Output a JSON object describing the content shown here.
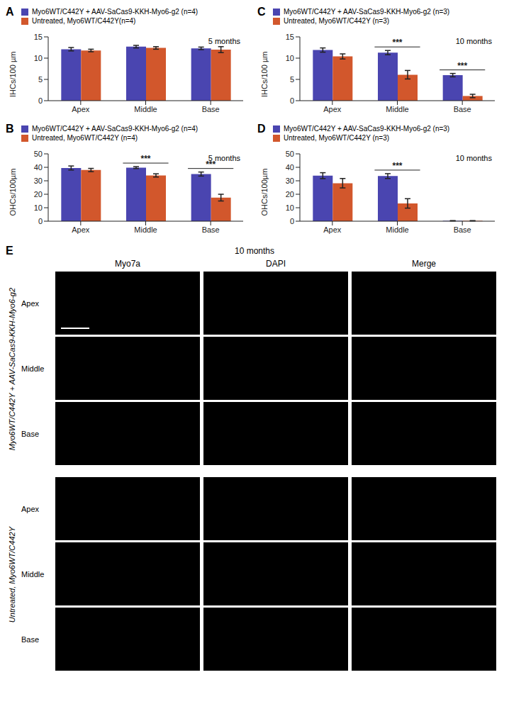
{
  "chart_data": [
    {
      "panel": "A",
      "type": "bar",
      "annotation": "5 months",
      "ylabel": "IHCs/100 µm",
      "categories": [
        "Apex",
        "Middle",
        "Base"
      ],
      "series": [
        {
          "name": "Myo6WT/C442Y + AAV-SaCas9-KKH-Myo6-g2 (n=4)",
          "color": "#4a45b0",
          "values": [
            12.1,
            12.7,
            12.3
          ],
          "errors": [
            0.4,
            0.3,
            0.3
          ]
        },
        {
          "name": "Untreated, Myo6WT/C442Y(n=4)",
          "color": "#d2572c",
          "values": [
            11.8,
            12.4,
            12.0
          ],
          "errors": [
            0.3,
            0.3,
            0.7
          ]
        }
      ],
      "ylim": [
        0,
        15
      ],
      "yticks": [
        0,
        5,
        10,
        15
      ],
      "significance": []
    },
    {
      "panel": "B",
      "type": "bar",
      "annotation": "5 months",
      "ylabel": "OHCs/100µm",
      "categories": [
        "Apex",
        "Middle",
        "Base"
      ],
      "series": [
        {
          "name": "Myo6WT/C442Y + AAV-SaCas9-KKH-Myo6-g2 (n=4)",
          "color": "#4a45b0",
          "values": [
            39.5,
            39.8,
            35.0
          ],
          "errors": [
            1.5,
            0.7,
            1.5
          ]
        },
        {
          "name": "Untreated, Myo6WT/C442Y (n=4)",
          "color": "#d2572c",
          "values": [
            38.0,
            34.0,
            17.5
          ],
          "errors": [
            1.2,
            1.2,
            2.5
          ]
        }
      ],
      "ylim": [
        0,
        50
      ],
      "yticks": [
        0,
        10,
        20,
        30,
        40,
        50
      ],
      "significance": [
        {
          "category": "Middle",
          "label": "***"
        },
        {
          "category": "Base",
          "label": "***"
        }
      ]
    },
    {
      "panel": "C",
      "type": "bar",
      "annotation": "10 months",
      "ylabel": "IHCs/100 µm",
      "categories": [
        "Apex",
        "Middle",
        "Base"
      ],
      "series": [
        {
          "name": "Myo6WT/C442Y + AAV-SaCas9-KKH-Myo6-g2 (n=3)",
          "color": "#4a45b0",
          "values": [
            11.9,
            11.3,
            6.0
          ],
          "errors": [
            0.5,
            0.5,
            0.4
          ]
        },
        {
          "name": "Untreated, Myo6WT/C442Y (n=3)",
          "color": "#d2572c",
          "values": [
            10.4,
            6.1,
            1.1
          ],
          "errors": [
            0.6,
            1.0,
            0.4
          ]
        }
      ],
      "ylim": [
        0,
        15
      ],
      "yticks": [
        0,
        5,
        10,
        15
      ],
      "significance": [
        {
          "category": "Middle",
          "label": "***"
        },
        {
          "category": "Base",
          "label": "***"
        }
      ]
    },
    {
      "panel": "D",
      "type": "bar",
      "annotation": "10 months",
      "ylabel": "OHCs/100µm",
      "categories": [
        "Apex",
        "Middle",
        "Base"
      ],
      "series": [
        {
          "name": "Myo6WT/C442Y + AAV-SaCas9-KKH-Myo6-g2 (n=3)",
          "color": "#4a45b0",
          "values": [
            33.8,
            33.5,
            0.3
          ],
          "errors": [
            2.2,
            1.8,
            0.1
          ]
        },
        {
          "name": "Untreated, Myo6WT/C442Y (n=3)",
          "color": "#d2572c",
          "values": [
            28.2,
            13.2,
            0.3
          ],
          "errors": [
            3.5,
            3.5,
            0.1
          ]
        }
      ],
      "ylim": [
        0,
        50
      ],
      "yticks": [
        0,
        10,
        20,
        30,
        40,
        50
      ],
      "significance": [
        {
          "category": "Middle",
          "label": "***"
        }
      ]
    }
  ],
  "panel_E": {
    "panel": "E",
    "title": "10 months",
    "columns": [
      "Myo7a",
      "DAPI",
      "Merge"
    ],
    "rows": [
      "Apex",
      "Middle",
      "Base"
    ],
    "groups": [
      "Myo6WT/C442Y + AAV-SaCas9-KKH-Myo6-g2",
      "Untreated, Myo6WT/C442Y"
    ]
  }
}
